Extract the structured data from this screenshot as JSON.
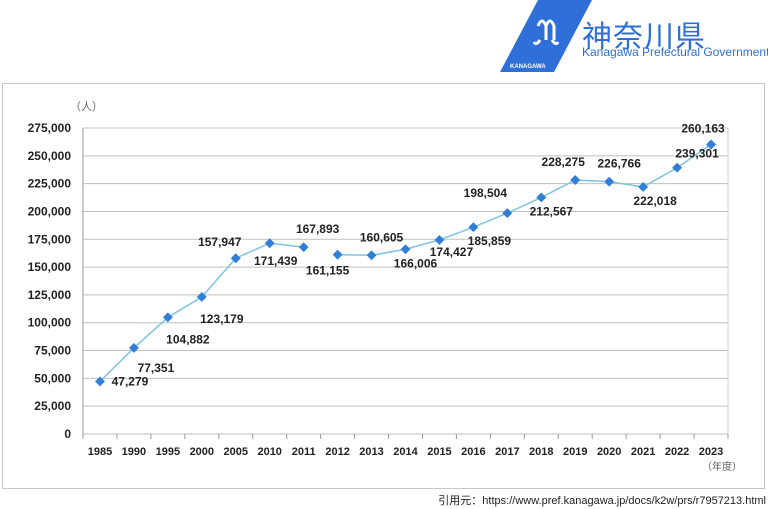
{
  "logo": {
    "name_jp": "神奈川県",
    "name_en": "Kanagawa Prefectural Government",
    "badge": "KANAGAWA"
  },
  "caption": "引用元：https://www.pref.kanagawa.jp/docs/k2w/prs/r7957213.html",
  "colors": {
    "line": "#7cc3e0",
    "marker": "#2f7fd8",
    "grid": "#bfbfbf",
    "logo": "#2f6fd8"
  },
  "chart_data": {
    "type": "line",
    "ylabel": "（人）",
    "xlabel": "（年度）",
    "ylim": [
      0,
      275000
    ],
    "yticks": [
      0,
      25000,
      50000,
      75000,
      100000,
      125000,
      150000,
      175000,
      200000,
      225000,
      250000,
      275000
    ],
    "ytick_labels": [
      "0",
      "25,000",
      "50,000",
      "75,000",
      "100,000",
      "125,000",
      "150,000",
      "175,000",
      "200,000",
      "225,000",
      "250,000",
      "275,000"
    ],
    "grid": true,
    "categories": [
      "1985",
      "1990",
      "1995",
      "2000",
      "2005",
      "2010",
      "2011",
      "2012",
      "2013",
      "2014",
      "2015",
      "2016",
      "2017",
      "2018",
      "2019",
      "2020",
      "2021",
      "2022",
      "2023"
    ],
    "values": [
      47279,
      77351,
      104882,
      123179,
      157947,
      171439,
      167893,
      161155,
      160605,
      166006,
      174427,
      185859,
      198504,
      212567,
      228275,
      226766,
      222018,
      239301,
      260163
    ],
    "value_labels": [
      "47,279",
      "77,351",
      "104,882",
      "123,179",
      "157,947",
      "171,439",
      "167,893",
      "161,155",
      "160,605",
      "166,006",
      "174,427",
      "185,859",
      "198,504",
      "212,567",
      "228,275",
      "226,766",
      "222,018",
      "239,301",
      "260,163"
    ],
    "line_break_after": "2011"
  }
}
